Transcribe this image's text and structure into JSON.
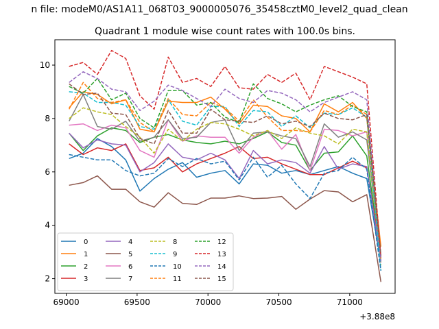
{
  "suptitle": "n file: modeM0/AS1A11_068T03_9000005076_35458cztM0_level2_quad_clean",
  "chart_data": {
    "type": "line",
    "title": "Quadrant 1 module wise count rates with 100.0s bins.",
    "xlabel": "",
    "ylabel": "",
    "x_offset_label": "+3.88e8",
    "xlim": [
      68920,
      71320
    ],
    "ylim": [
      1.45,
      10.95
    ],
    "xticks": [
      69000,
      69500,
      70000,
      70500,
      71000
    ],
    "yticks": [
      2,
      4,
      6,
      8,
      10
    ],
    "grid": false,
    "legend_position": "lower-left",
    "legend_columns": 4,
    "x": [
      69020,
      69120,
      69220,
      69320,
      69420,
      69520,
      69620,
      69720,
      69820,
      69920,
      70020,
      70120,
      70220,
      70320,
      70420,
      70520,
      70620,
      70720,
      70820,
      70920,
      71020,
      71120,
      71220
    ],
    "series": [
      {
        "name": "0",
        "color": "#1f77b4",
        "dash": "solid",
        "values": [
          6.5,
          6.7,
          7.25,
          6.95,
          6.45,
          5.28,
          5.75,
          6.1,
          6.35,
          5.8,
          5.95,
          6.05,
          5.55,
          6.3,
          6.25,
          5.95,
          6.05,
          5.9,
          6.05,
          6.2,
          5.95,
          5.75,
          2.6
        ]
      },
      {
        "name": "1",
        "color": "#ff7f0e",
        "dash": "solid",
        "values": [
          8.4,
          9.0,
          8.9,
          8.55,
          8.7,
          7.6,
          7.5,
          8.65,
          8.6,
          8.6,
          8.8,
          8.35,
          7.8,
          8.5,
          8.45,
          8.1,
          8.0,
          7.5,
          8.55,
          8.25,
          8.6,
          8.0,
          3.2
        ]
      },
      {
        "name": "2",
        "color": "#2ca02c",
        "dash": "solid",
        "values": [
          7.45,
          6.8,
          7.35,
          7.65,
          7.55,
          7.1,
          7.3,
          7.4,
          7.2,
          7.1,
          7.05,
          7.15,
          7.05,
          7.25,
          7.5,
          7.1,
          7.0,
          6.05,
          6.7,
          6.75,
          7.35,
          6.6,
          2.75
        ]
      },
      {
        "name": "3",
        "color": "#d62728",
        "dash": "solid",
        "values": [
          7.05,
          6.65,
          6.9,
          6.8,
          7.05,
          6.05,
          6.15,
          6.55,
          6.0,
          6.3,
          6.5,
          6.7,
          6.95,
          6.5,
          6.55,
          6.3,
          6.1,
          5.9,
          5.9,
          6.15,
          6.4,
          6.15,
          2.85
        ]
      },
      {
        "name": "4",
        "color": "#9467bd",
        "dash": "solid",
        "values": [
          7.45,
          6.9,
          7.2,
          7.05,
          7.0,
          6.0,
          6.35,
          7.05,
          6.55,
          6.45,
          6.7,
          6.45,
          5.75,
          6.8,
          6.3,
          6.45,
          6.35,
          5.95,
          6.95,
          6.1,
          6.3,
          6.2,
          2.65
        ]
      },
      {
        "name": "5",
        "color": "#8c564b",
        "dash": "solid",
        "values": [
          5.5,
          5.6,
          5.85,
          5.35,
          5.35,
          4.88,
          4.68,
          5.22,
          4.82,
          4.78,
          5.02,
          5.02,
          5.1,
          5.0,
          5.02,
          5.08,
          4.6,
          4.98,
          5.3,
          5.25,
          4.88,
          5.15,
          1.88
        ]
      },
      {
        "name": "6",
        "color": "#e377c2",
        "dash": "solid",
        "values": [
          7.75,
          7.8,
          7.55,
          7.75,
          7.65,
          6.8,
          6.55,
          7.95,
          7.15,
          7.35,
          7.3,
          7.3,
          6.7,
          7.3,
          7.55,
          6.85,
          7.4,
          6.05,
          7.6,
          7.55,
          7.35,
          7.5,
          2.6
        ]
      },
      {
        "name": "7",
        "color": "#7f7f7f",
        "dash": "solid",
        "values": [
          7.9,
          8.9,
          7.7,
          7.6,
          7.9,
          7.15,
          7.3,
          7.95,
          7.25,
          7.3,
          7.85,
          7.95,
          6.8,
          7.45,
          7.5,
          7.35,
          7.25,
          6.2,
          7.8,
          7.3,
          7.5,
          7.2,
          2.8
        ]
      },
      {
        "name": "8",
        "color": "#bcbd22",
        "dash": "dashed",
        "values": [
          8.0,
          8.4,
          8.25,
          8.15,
          7.7,
          7.3,
          6.7,
          7.6,
          7.15,
          7.6,
          7.85,
          7.8,
          7.6,
          7.35,
          7.55,
          7.25,
          7.65,
          7.45,
          7.35,
          7.05,
          7.6,
          7.5,
          2.5
        ]
      },
      {
        "name": "9",
        "color": "#17becf",
        "dash": "dashed",
        "values": [
          9.0,
          8.95,
          8.6,
          8.6,
          8.5,
          7.7,
          7.6,
          8.7,
          7.9,
          7.75,
          8.45,
          8.45,
          7.7,
          8.3,
          8.25,
          7.7,
          8.1,
          7.65,
          8.2,
          8.15,
          8.4,
          8.05,
          2.3
        ]
      },
      {
        "name": "10",
        "color": "#1f77b4",
        "dash": "dashed",
        "values": [
          6.65,
          6.55,
          6.45,
          6.45,
          6.05,
          5.85,
          5.95,
          6.5,
          6.2,
          6.5,
          6.3,
          6.4,
          5.7,
          6.55,
          5.8,
          6.25,
          5.55,
          5.0,
          5.95,
          6.05,
          6.55,
          6.1,
          2.3
        ]
      },
      {
        "name": "11",
        "color": "#ff7f0e",
        "dash": "dashed",
        "values": [
          8.35,
          9.35,
          8.75,
          8.6,
          8.7,
          7.85,
          7.5,
          8.75,
          8.15,
          8.1,
          8.6,
          8.4,
          7.9,
          8.7,
          8.05,
          7.55,
          7.55,
          7.5,
          8.3,
          8.15,
          8.5,
          8.15,
          2.75
        ]
      },
      {
        "name": "12",
        "color": "#2ca02c",
        "dash": "dashed",
        "values": [
          9.2,
          8.95,
          9.5,
          8.7,
          8.95,
          8.0,
          7.65,
          9.05,
          9.05,
          8.5,
          8.6,
          8.05,
          7.85,
          9.3,
          8.75,
          8.55,
          8.25,
          8.5,
          8.7,
          8.85,
          8.45,
          8.25,
          2.85
        ]
      },
      {
        "name": "13",
        "color": "#d62728",
        "dash": "dashed",
        "values": [
          9.95,
          10.1,
          9.65,
          10.55,
          10.25,
          8.85,
          8.35,
          10.3,
          9.35,
          9.5,
          9.2,
          9.95,
          9.15,
          9.1,
          9.65,
          9.35,
          9.7,
          8.7,
          9.95,
          9.75,
          9.55,
          9.3,
          2.8
        ]
      },
      {
        "name": "14",
        "color": "#9467bd",
        "dash": "dashed",
        "values": [
          9.35,
          9.75,
          9.5,
          9.1,
          9.0,
          8.3,
          8.65,
          9.25,
          9.05,
          8.75,
          8.45,
          9.1,
          8.75,
          8.6,
          9.05,
          8.95,
          8.7,
          8.25,
          8.6,
          8.8,
          9.0,
          8.7,
          2.65
        ]
      },
      {
        "name": "15",
        "color": "#8c564b",
        "dash": "dashed",
        "values": [
          9.3,
          8.9,
          8.95,
          8.2,
          8.15,
          7.25,
          7.05,
          8.3,
          7.45,
          7.45,
          8.35,
          7.95,
          7.9,
          7.85,
          8.1,
          7.8,
          7.9,
          7.7,
          8.2,
          8.0,
          7.95,
          8.15,
          2.9
        ]
      }
    ]
  }
}
